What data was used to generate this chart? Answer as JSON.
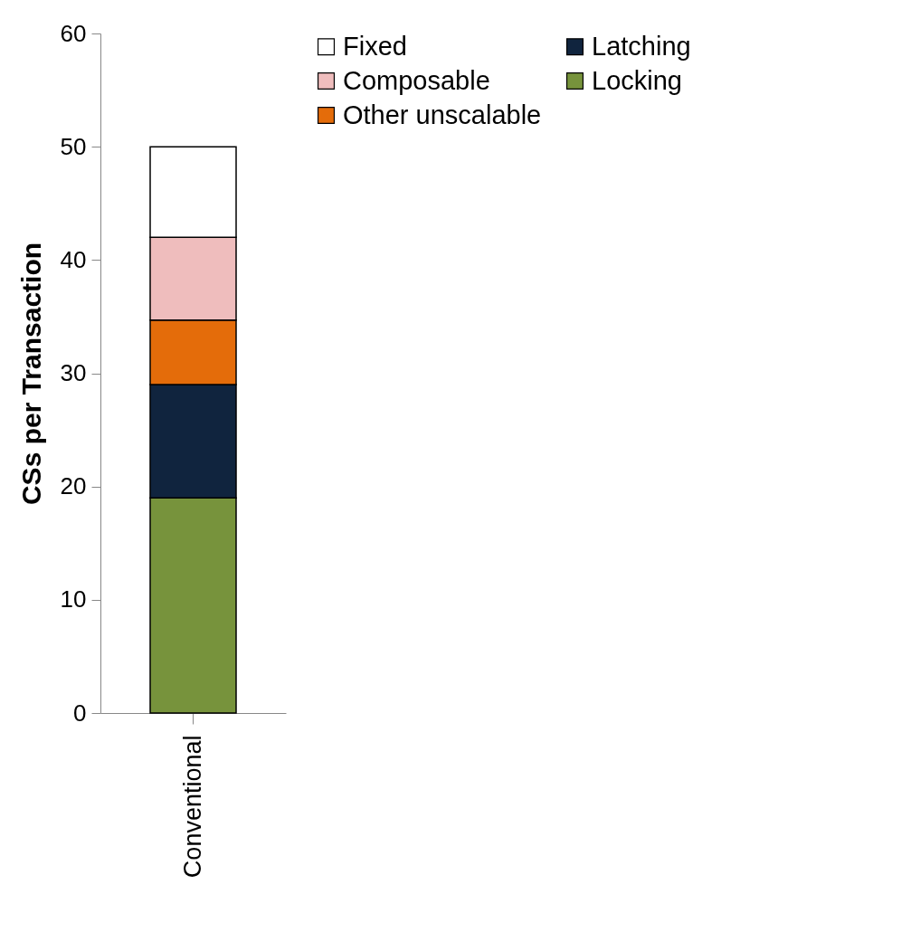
{
  "chart_data": {
    "type": "bar",
    "stacked": true,
    "ylabel": "CSs per Transaction",
    "categories": [
      "Conventional"
    ],
    "series": [
      {
        "name": "Locking",
        "color": "#77933c",
        "values": [
          19
        ]
      },
      {
        "name": "Latching",
        "color": "#10243e",
        "values": [
          10
        ]
      },
      {
        "name": "Other unscalable",
        "color": "#e46c0a",
        "values": [
          5.7
        ]
      },
      {
        "name": "Composable",
        "color": "#efbdbd",
        "values": [
          7.3
        ]
      },
      {
        "name": "Fixed",
        "color": "#ffffff",
        "values": [
          8
        ]
      }
    ],
    "ylim": [
      0,
      60
    ],
    "yticks": [
      0,
      10,
      20,
      30,
      40,
      50,
      60
    ],
    "grid": false,
    "legend": "top right"
  }
}
